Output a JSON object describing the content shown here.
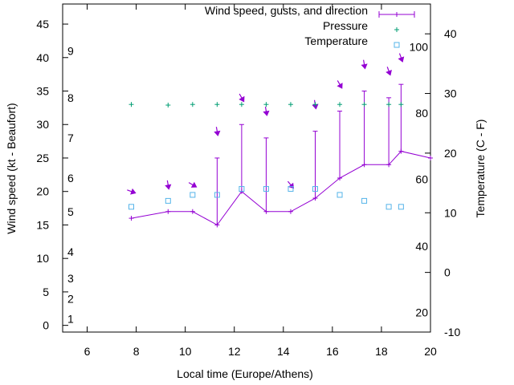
{
  "colors": {
    "wind": "#9400d3",
    "pressure": "#009e73",
    "temperature": "#56b4e9",
    "axis": "#000000"
  },
  "chart_data": {
    "type": "line",
    "xlabel": "Local time (Europe/Athens)",
    "ylabel": "Wind speed (kt - Beaufort)",
    "y2label": "Temperature (C - F)",
    "xlim": [
      5,
      20
    ],
    "ylim": [
      -1,
      48
    ],
    "y2lim": [
      -10,
      45
    ],
    "x_ticks": [
      6,
      8,
      10,
      12,
      14,
      16,
      18,
      20
    ],
    "y_ticks": [
      0,
      5,
      10,
      15,
      20,
      25,
      30,
      35,
      40,
      45
    ],
    "y2_ticks": [
      -10,
      0,
      10,
      20,
      30,
      40
    ],
    "beaufort_labels": [
      {
        "label": "1",
        "kt": 1
      },
      {
        "label": "2",
        "kt": 4
      },
      {
        "label": "3",
        "kt": 7
      },
      {
        "label": "4",
        "kt": 11
      },
      {
        "label": "5",
        "kt": 17
      },
      {
        "label": "6",
        "kt": 22
      },
      {
        "label": "7",
        "kt": 28
      },
      {
        "label": "8",
        "kt": 34
      },
      {
        "label": "9",
        "kt": 41
      }
    ],
    "fahrenheit_labels": [
      {
        "label": "20",
        "c": -6.7
      },
      {
        "label": "40",
        "c": 4.4
      },
      {
        "label": "60",
        "c": 15.6
      },
      {
        "label": "80",
        "c": 26.7
      },
      {
        "label": "100",
        "c": 37.8
      }
    ],
    "legend": {
      "placement": "top-right",
      "entries": [
        "Wind speed, gusts, and direction",
        "Pressure",
        "Temperature"
      ]
    },
    "series": [
      {
        "name": "Wind speed, gusts, and direction",
        "points": [
          {
            "x": 7.8,
            "speed": 16,
            "gust": 16,
            "dir": 290,
            "arrow_kt": 20
          },
          {
            "x": 9.3,
            "speed": 17,
            "gust": 17,
            "dir": 350,
            "arrow_kt": 21
          },
          {
            "x": 10.3,
            "speed": 17,
            "gust": 17,
            "dir": 300,
            "arrow_kt": 21
          },
          {
            "x": 11.3,
            "speed": 15,
            "gust": 25,
            "dir": 350,
            "arrow_kt": 29
          },
          {
            "x": 12.3,
            "speed": 20,
            "gust": 30,
            "dir": 330,
            "arrow_kt": 34
          },
          {
            "x": 13.3,
            "speed": 17,
            "gust": 28,
            "dir": 350,
            "arrow_kt": 32
          },
          {
            "x": 14.3,
            "speed": 17,
            "gust": 17,
            "dir": 320,
            "arrow_kt": 21
          },
          {
            "x": 15.3,
            "speed": 19,
            "gust": 29,
            "dir": 350,
            "arrow_kt": 33
          },
          {
            "x": 16.3,
            "speed": 22,
            "gust": 32,
            "dir": 330,
            "arrow_kt": 36
          },
          {
            "x": 17.3,
            "speed": 24,
            "gust": 35,
            "dir": 350,
            "arrow_kt": 39
          },
          {
            "x": 18.3,
            "speed": 24,
            "gust": 34,
            "dir": 340,
            "arrow_kt": 38
          },
          {
            "x": 18.8,
            "speed": 26,
            "gust": 36,
            "dir": 340,
            "arrow_kt": 40
          },
          {
            "x": 20,
            "speed": 25,
            "gust": 25,
            "dir": null,
            "arrow_kt": null
          }
        ]
      },
      {
        "name": "Pressure",
        "points": [
          {
            "x": 7.8,
            "y": 33
          },
          {
            "x": 9.3,
            "y": 32.9
          },
          {
            "x": 10.3,
            "y": 33
          },
          {
            "x": 11.3,
            "y": 33
          },
          {
            "x": 12.3,
            "y": 33
          },
          {
            "x": 13.3,
            "y": 33
          },
          {
            "x": 14.3,
            "y": 33
          },
          {
            "x": 15.3,
            "y": 33
          },
          {
            "x": 16.3,
            "y": 33
          },
          {
            "x": 17.3,
            "y": 33
          },
          {
            "x": 18.3,
            "y": 33
          },
          {
            "x": 18.8,
            "y": 33
          }
        ]
      },
      {
        "name": "Temperature",
        "points": [
          {
            "x": 7.8,
            "t": 11
          },
          {
            "x": 9.3,
            "t": 12
          },
          {
            "x": 10.3,
            "t": 13
          },
          {
            "x": 11.3,
            "t": 13
          },
          {
            "x": 12.3,
            "t": 14
          },
          {
            "x": 13.3,
            "t": 14
          },
          {
            "x": 14.3,
            "t": 14
          },
          {
            "x": 15.3,
            "t": 14
          },
          {
            "x": 16.3,
            "t": 13
          },
          {
            "x": 17.3,
            "t": 12
          },
          {
            "x": 18.3,
            "t": 11
          },
          {
            "x": 18.8,
            "t": 11
          }
        ]
      }
    ]
  }
}
